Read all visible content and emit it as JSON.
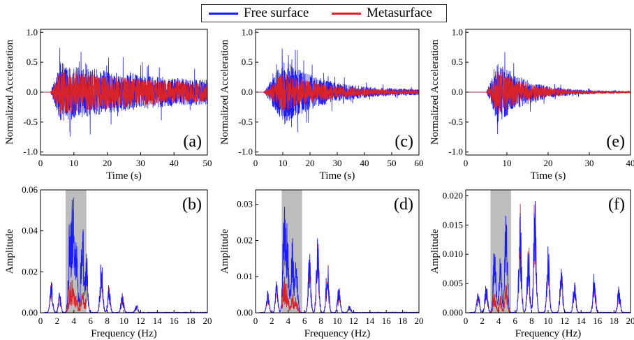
{
  "colors": {
    "free": "#1a1aff",
    "meta": "#d9232a",
    "band": "#bdbdbd"
  },
  "legend": {
    "free_label": "Free surface",
    "meta_label": "Metasurface"
  },
  "chart_data": [
    {
      "id": "a",
      "type": "line",
      "panel_label": "(a)",
      "xlabel": "Time (s)",
      "ylabel": "Normalized Acceleration",
      "xlim": [
        0,
        50
      ],
      "ylim": [
        -1.05,
        1.05
      ],
      "xticks": [
        0,
        10,
        20,
        30,
        40,
        50
      ],
      "xtick_labels": [
        "0",
        "10",
        "20",
        "30",
        "40",
        "50"
      ],
      "yticks": [
        -1.0,
        -0.5,
        0.0,
        0.5,
        1.0
      ],
      "ytick_labels": [
        "-1.0",
        "-0.5",
        "0.0",
        "0.5",
        "1.0"
      ],
      "signal": {
        "onset": 3,
        "end": 50,
        "peak_time": 6,
        "free_peak": 0.9,
        "meta_peak": 0.55,
        "decay": 0.03,
        "floor": 0.2
      },
      "series": [
        {
          "name": "Free surface"
        },
        {
          "name": "Metasurface"
        }
      ]
    },
    {
      "id": "c",
      "type": "line",
      "panel_label": "(c)",
      "xlabel": "Time (s)",
      "ylabel": "Normalized Acceleration",
      "xlim": [
        0,
        60
      ],
      "ylim": [
        -1.05,
        1.05
      ],
      "xticks": [
        0,
        10,
        20,
        30,
        40,
        50,
        60
      ],
      "xtick_labels": [
        "0",
        "10",
        "20",
        "30",
        "40",
        "50",
        "60"
      ],
      "yticks": [
        -1.0,
        -0.5,
        0.0,
        0.5,
        1.0
      ],
      "ytick_labels": [
        "-1.0",
        "-0.5",
        "0.0",
        "0.5",
        "1.0"
      ],
      "signal": {
        "onset": 3,
        "end": 60,
        "peak_time": 10.5,
        "free_peak": 1.0,
        "meta_peak": 0.5,
        "decay": 0.07,
        "floor": 0.06
      },
      "series": [
        {
          "name": "Free surface"
        },
        {
          "name": "Metasurface"
        }
      ]
    },
    {
      "id": "e",
      "type": "line",
      "panel_label": "(e)",
      "xlabel": "Time (s)",
      "ylabel": "Normalized Acceleration",
      "xlim": [
        0,
        40
      ],
      "ylim": [
        -1.05,
        1.05
      ],
      "xticks": [
        0,
        10,
        20,
        30,
        40
      ],
      "xtick_labels": [
        "0",
        "10",
        "20",
        "30",
        "40"
      ],
      "yticks": [
        -1.0,
        -0.5,
        0.0,
        0.5,
        1.0
      ],
      "ytick_labels": [
        "-1.0",
        "-0.5",
        "0.0",
        "0.5",
        "1.0"
      ],
      "signal": {
        "onset": 5,
        "end": 40,
        "peak_time": 8,
        "free_peak": 0.95,
        "meta_peak": 0.55,
        "decay": 0.14,
        "floor": 0.02
      },
      "series": [
        {
          "name": "Free surface"
        },
        {
          "name": "Metasurface"
        }
      ]
    },
    {
      "id": "b",
      "type": "line",
      "panel_label": "(b)",
      "xlabel": "Frequency (Hz)",
      "ylabel": "Amplitude",
      "xlim": [
        0,
        20
      ],
      "ylim": [
        0,
        0.06
      ],
      "xticks": [
        0,
        2,
        4,
        6,
        8,
        10,
        12,
        14,
        16,
        18,
        20
      ],
      "xtick_labels": [
        "0",
        "2",
        "4",
        "6",
        "8",
        "10",
        "12",
        "14",
        "16",
        "18",
        "20"
      ],
      "yticks": [
        0,
        0.02,
        0.04,
        0.06
      ],
      "ytick_labels": [
        "0.00",
        "0.02",
        "0.04",
        "0.06"
      ],
      "band": [
        3.0,
        5.5
      ],
      "peaks": [
        {
          "f": 1.3,
          "a": 0.016
        },
        {
          "f": 2.3,
          "a": 0.01
        },
        {
          "f": 3.5,
          "a": 0.047
        },
        {
          "f": 3.9,
          "a": 0.059
        },
        {
          "f": 4.3,
          "a": 0.034
        },
        {
          "f": 5.0,
          "a": 0.054
        },
        {
          "f": 5.5,
          "a": 0.03
        },
        {
          "f": 7.3,
          "a": 0.029
        },
        {
          "f": 8.2,
          "a": 0.014
        },
        {
          "f": 9.8,
          "a": 0.01
        },
        {
          "f": 11.5,
          "a": 0.004
        }
      ],
      "series": [
        {
          "name": "Free surface"
        },
        {
          "name": "Metasurface"
        }
      ]
    },
    {
      "id": "d",
      "type": "line",
      "panel_label": "(d)",
      "xlabel": "Frequency (Hz)",
      "ylabel": "Amplitude",
      "xlim": [
        0,
        20
      ],
      "ylim": [
        0,
        0.034
      ],
      "xticks": [
        0,
        2,
        4,
        6,
        8,
        10,
        12,
        14,
        16,
        18,
        20
      ],
      "xtick_labels": [
        "0",
        "2",
        "4",
        "6",
        "8",
        "10",
        "12",
        "14",
        "16",
        "18",
        "20"
      ],
      "yticks": [
        0,
        0.01,
        0.02,
        0.03
      ],
      "ytick_labels": [
        "0.00",
        "0.01",
        "0.02",
        "0.03"
      ],
      "band": [
        3.2,
        5.7
      ],
      "peaks": [
        {
          "f": 1.5,
          "a": 0.006
        },
        {
          "f": 2.6,
          "a": 0.009
        },
        {
          "f": 3.5,
          "a": 0.034
        },
        {
          "f": 3.9,
          "a": 0.024
        },
        {
          "f": 4.5,
          "a": 0.021
        },
        {
          "f": 5.0,
          "a": 0.016
        },
        {
          "f": 6.6,
          "a": 0.017
        },
        {
          "f": 7.6,
          "a": 0.022
        },
        {
          "f": 8.8,
          "a": 0.016
        },
        {
          "f": 10.2,
          "a": 0.008
        },
        {
          "f": 11.5,
          "a": 0.002
        }
      ],
      "series": [
        {
          "name": "Free surface"
        },
        {
          "name": "Metasurface"
        }
      ]
    },
    {
      "id": "f",
      "type": "line",
      "panel_label": "(f)",
      "xlabel": "Frequency (Hz)",
      "ylabel": "Amplitude",
      "xlim": [
        0,
        20
      ],
      "ylim": [
        0,
        0.021
      ],
      "xticks": [
        0,
        2,
        4,
        6,
        8,
        10,
        12,
        14,
        16,
        18,
        20
      ],
      "xtick_labels": [
        "0",
        "2",
        "4",
        "6",
        "8",
        "10",
        "12",
        "14",
        "16",
        "18",
        "20"
      ],
      "yticks": [
        0,
        0.005,
        0.01,
        0.015,
        0.02
      ],
      "ytick_labels": [
        "0.000",
        "0.005",
        "0.010",
        "0.015",
        "0.020"
      ],
      "band": [
        3.0,
        5.5
      ],
      "peaks": [
        {
          "f": 1.5,
          "a": 0.004
        },
        {
          "f": 2.5,
          "a": 0.006
        },
        {
          "f": 3.5,
          "a": 0.014
        },
        {
          "f": 4.2,
          "a": 0.01
        },
        {
          "f": 4.9,
          "a": 0.019
        },
        {
          "f": 6.6,
          "a": 0.018
        },
        {
          "f": 7.6,
          "a": 0.012
        },
        {
          "f": 8.4,
          "a": 0.02
        },
        {
          "f": 10.0,
          "a": 0.012
        },
        {
          "f": 11.6,
          "a": 0.009
        },
        {
          "f": 13.2,
          "a": 0.006
        },
        {
          "f": 15.6,
          "a": 0.007
        },
        {
          "f": 18.6,
          "a": 0.005
        }
      ],
      "series": [
        {
          "name": "Free surface"
        },
        {
          "name": "Metasurface"
        }
      ]
    }
  ]
}
